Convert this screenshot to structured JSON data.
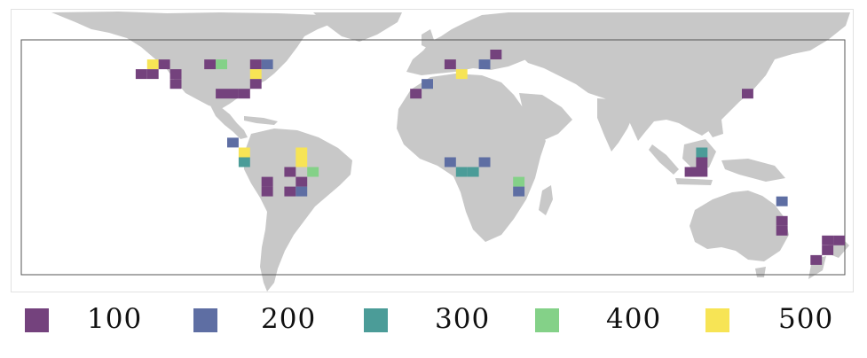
{
  "colors": {
    "land": "#c8c8c8",
    "frame": "#555555",
    "100": "#74427d",
    "200": "#5e6ea3",
    "300": "#4b9c98",
    "400": "#84d188",
    "500": "#f7e455"
  },
  "legend": [
    {
      "label": "100",
      "color": "#74427d"
    },
    {
      "label": "200",
      "color": "#5e6ea3"
    },
    {
      "label": "300",
      "color": "#4b9c98"
    },
    {
      "label": "400",
      "color": "#84d188"
    },
    {
      "label": "500",
      "color": "#f7e455"
    }
  ],
  "chart_data": {
    "type": "heatmap",
    "lon_range": [
      -180,
      180
    ],
    "lat_range": [
      -60,
      60
    ],
    "cell_size_deg": 5,
    "legend_values": [
      100,
      200,
      300,
      400,
      500
    ],
    "cells": [
      {
        "lon": -122.5,
        "lat": 47.5,
        "value": 500
      },
      {
        "lon": -117.5,
        "lat": 47.5,
        "value": 100
      },
      {
        "lon": -127.5,
        "lat": 42.5,
        "value": 100
      },
      {
        "lon": -122.5,
        "lat": 42.5,
        "value": 100
      },
      {
        "lon": -112.5,
        "lat": 42.5,
        "value": 100
      },
      {
        "lon": -112.5,
        "lat": 37.5,
        "value": 100
      },
      {
        "lon": -97.5,
        "lat": 47.5,
        "value": 100
      },
      {
        "lon": -92.5,
        "lat": 47.5,
        "value": 400
      },
      {
        "lon": -77.5,
        "lat": 47.5,
        "value": 100
      },
      {
        "lon": -72.5,
        "lat": 47.5,
        "value": 200
      },
      {
        "lon": -77.5,
        "lat": 42.5,
        "value": 500
      },
      {
        "lon": -77.5,
        "lat": 37.5,
        "value": 100
      },
      {
        "lon": -92.5,
        "lat": 32.5,
        "value": 100
      },
      {
        "lon": -87.5,
        "lat": 32.5,
        "value": 100
      },
      {
        "lon": -82.5,
        "lat": 32.5,
        "value": 100
      },
      {
        "lon": -87.5,
        "lat": 7.5,
        "value": 200
      },
      {
        "lon": -82.5,
        "lat": 2.5,
        "value": 500
      },
      {
        "lon": -82.5,
        "lat": -2.5,
        "value": 300
      },
      {
        "lon": -57.5,
        "lat": 2.5,
        "value": 500
      },
      {
        "lon": -57.5,
        "lat": -2.5,
        "value": 500
      },
      {
        "lon": -52.5,
        "lat": -7.5,
        "value": 400
      },
      {
        "lon": -72.5,
        "lat": -12.5,
        "value": 100
      },
      {
        "lon": -72.5,
        "lat": -17.5,
        "value": 100
      },
      {
        "lon": -62.5,
        "lat": -7.5,
        "value": 100
      },
      {
        "lon": -62.5,
        "lat": -17.5,
        "value": 100
      },
      {
        "lon": -57.5,
        "lat": -12.5,
        "value": 100
      },
      {
        "lon": -57.5,
        "lat": -17.5,
        "value": 200
      },
      {
        "lon": 7.5,
        "lat": 47.5,
        "value": 100
      },
      {
        "lon": 22.5,
        "lat": 47.5,
        "value": 200
      },
      {
        "lon": 27.5,
        "lat": 52.5,
        "value": 100
      },
      {
        "lon": 12.5,
        "lat": 42.5,
        "value": 500
      },
      {
        "lon": -2.5,
        "lat": 37.5,
        "value": 200
      },
      {
        "lon": -7.5,
        "lat": 32.5,
        "value": 100
      },
      {
        "lon": 7.5,
        "lat": -2.5,
        "value": 200
      },
      {
        "lon": 12.5,
        "lat": -7.5,
        "value": 300
      },
      {
        "lon": 17.5,
        "lat": -7.5,
        "value": 300
      },
      {
        "lon": 22.5,
        "lat": -2.5,
        "value": 200
      },
      {
        "lon": 37.5,
        "lat": -12.5,
        "value": 400
      },
      {
        "lon": 37.5,
        "lat": -17.5,
        "value": 200
      },
      {
        "lon": 137.5,
        "lat": 32.5,
        "value": 100
      },
      {
        "lon": 117.5,
        "lat": 2.5,
        "value": 300
      },
      {
        "lon": 117.5,
        "lat": -2.5,
        "value": 100
      },
      {
        "lon": 112.5,
        "lat": -7.5,
        "value": 100
      },
      {
        "lon": 117.5,
        "lat": -7.5,
        "value": 100
      },
      {
        "lon": 152.5,
        "lat": -22.5,
        "value": 200
      },
      {
        "lon": 152.5,
        "lat": -32.5,
        "value": 100
      },
      {
        "lon": 152.5,
        "lat": -37.5,
        "value": 100
      },
      {
        "lon": 172.5,
        "lat": -42.5,
        "value": 100
      },
      {
        "lon": 177.5,
        "lat": -42.5,
        "value": 100
      },
      {
        "lon": 172.5,
        "lat": -47.5,
        "value": 100
      },
      {
        "lon": 167.5,
        "lat": -52.5,
        "value": 100
      }
    ]
  }
}
